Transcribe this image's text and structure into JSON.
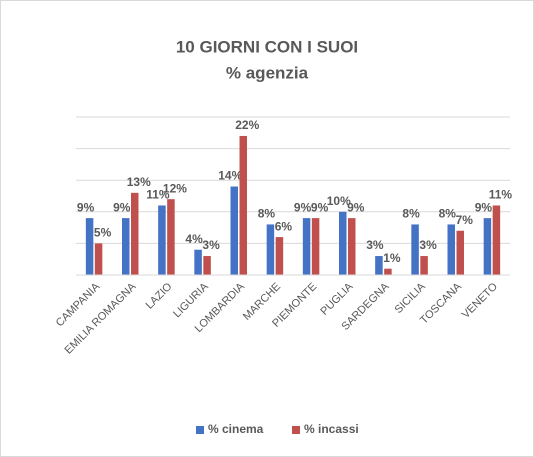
{
  "chart_data": {
    "type": "bar",
    "title": "10 GIORNI CON I SUOI",
    "subtitle": "% agenzia",
    "categories": [
      "CAMPANIA",
      "EMILIA ROMAGNA",
      "LAZIO",
      "LIGURIA",
      "LOMBARDIA",
      "MARCHE",
      "PIEMONTE",
      "PUGLIA",
      "SARDEGNA",
      "SICILIA",
      "TOSCANA",
      "VENETO"
    ],
    "series": [
      {
        "name": "% cinema",
        "color": "#4472c4",
        "values": [
          9,
          9,
          11,
          4,
          14,
          8,
          9,
          10,
          3,
          8,
          8,
          9
        ],
        "value_labels": [
          "9%",
          "9%",
          "11%",
          "4%",
          "14%",
          "8%",
          "9%",
          "10%",
          "3%",
          "8%",
          "8%",
          "9%"
        ]
      },
      {
        "name": "% incassi",
        "color": "#c0504d",
        "values": [
          5,
          13,
          12,
          3,
          22,
          6,
          9,
          9,
          1,
          3,
          7,
          11
        ],
        "value_labels": [
          "5%",
          "13%",
          "12%",
          "3%",
          "22%",
          "6%",
          "9%",
          "9%",
          "1%",
          "3%",
          "7%",
          "11%"
        ]
      }
    ],
    "ylim": [
      0,
      25
    ],
    "yticks": [
      0,
      5,
      10,
      15,
      20,
      25
    ],
    "grid": true,
    "legend": "bottom"
  }
}
